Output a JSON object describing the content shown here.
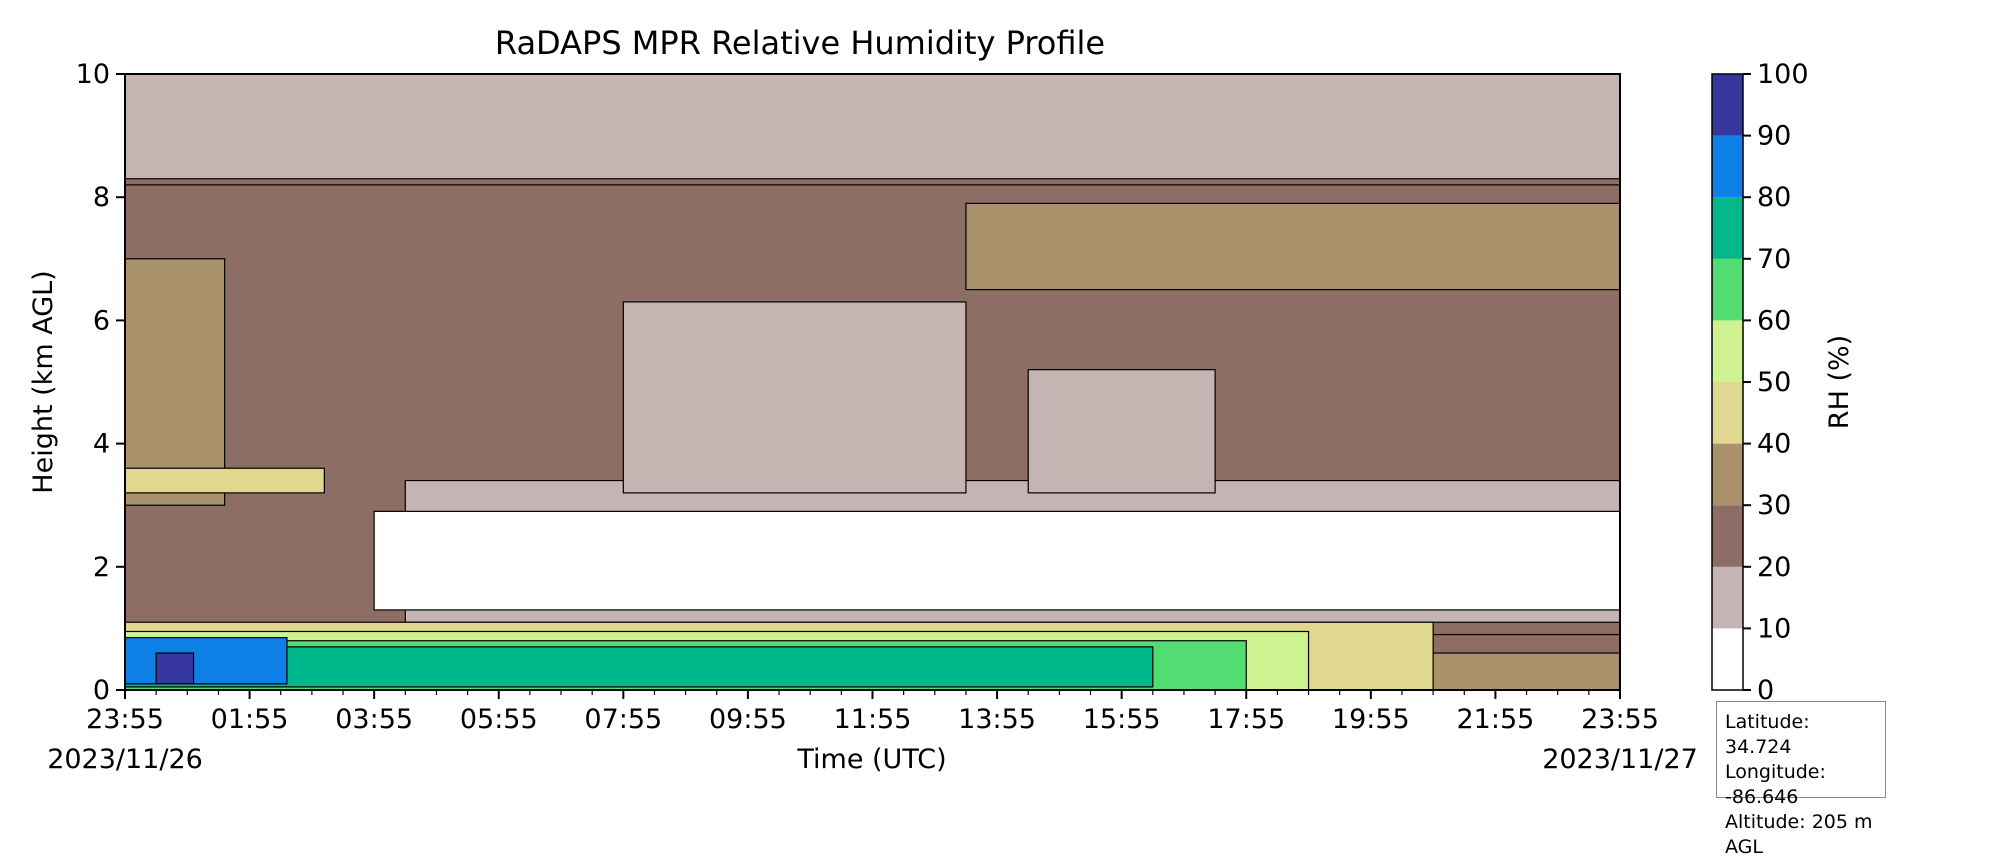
{
  "chart_data": {
    "type": "heatmap",
    "title": "RaDAPS MPR Relative Humidity Profile",
    "xlabel": "Time (UTC)",
    "ylabel": "Height (km AGL)",
    "x_tick_labels": [
      "23:55",
      "01:55",
      "03:55",
      "05:55",
      "07:55",
      "09:55",
      "11:55",
      "13:55",
      "15:55",
      "17:55",
      "19:55",
      "21:55",
      "23:55"
    ],
    "x_tick_hours": [
      0,
      2,
      4,
      6,
      8,
      10,
      12,
      14,
      16,
      18,
      20,
      22,
      24
    ],
    "x_start_date": "2023/11/26",
    "x_end_date": "2023/11/27",
    "y_ticks": [
      0,
      2,
      4,
      6,
      8,
      10
    ],
    "ylim": [
      0,
      10
    ],
    "colorbar": {
      "label": "RH (%)",
      "ticks": [
        0,
        10,
        20,
        30,
        40,
        50,
        60,
        70,
        80,
        90,
        100
      ],
      "bins": [
        {
          "min": 0,
          "max": 10,
          "color": "#ffffff"
        },
        {
          "min": 10,
          "max": 20,
          "color": "#c5b5b2"
        },
        {
          "min": 20,
          "max": 30,
          "color": "#8d6e65"
        },
        {
          "min": 30,
          "max": 40,
          "color": "#a8916b"
        },
        {
          "min": 40,
          "max": 50,
          "color": "#e0d88e"
        },
        {
          "min": 50,
          "max": 60,
          "color": "#cdf28f"
        },
        {
          "min": 60,
          "max": 70,
          "color": "#52dc72"
        },
        {
          "min": 70,
          "max": 80,
          "color": "#00b88c"
        },
        {
          "min": 80,
          "max": 90,
          "color": "#0f80e6"
        },
        {
          "min": 90,
          "max": 100,
          "color": "#36369f"
        }
      ]
    },
    "layers": [
      {
        "rh_bin": "20-30",
        "t_start": 0,
        "t_end": 24,
        "z_bottom": 0.9,
        "z_top": 8.2
      },
      {
        "rh_bin": "10-20",
        "t_start": 0,
        "t_end": 24,
        "z_bottom": 8.3,
        "z_top": 10.0
      },
      {
        "rh_bin": "10-20",
        "t_start": 4.5,
        "t_end": 24,
        "z_bottom": 1.1,
        "z_top": 3.4
      },
      {
        "rh_bin": "10-20",
        "t_start": 8,
        "t_end": 13.5,
        "z_bottom": 3.2,
        "z_top": 6.3
      },
      {
        "rh_bin": "10-20",
        "t_start": 14.5,
        "t_end": 17.5,
        "z_bottom": 3.2,
        "z_top": 5.2
      },
      {
        "rh_bin": "0-10",
        "t_start": 4.0,
        "t_end": 24,
        "z_bottom": 1.3,
        "z_top": 2.9
      },
      {
        "rh_bin": "30-40",
        "t_start": 13.5,
        "t_end": 24,
        "z_bottom": 6.5,
        "z_top": 7.9
      },
      {
        "rh_bin": "30-40",
        "t_start": 0,
        "t_end": 1.6,
        "z_bottom": 3.0,
        "z_top": 7.0
      },
      {
        "rh_bin": "40-50",
        "t_start": 0,
        "t_end": 3.2,
        "z_bottom": 3.2,
        "z_top": 3.6
      },
      {
        "rh_bin": "30-40",
        "t_start": 19.5,
        "t_end": 24,
        "z_bottom": 0,
        "z_top": 0.6
      },
      {
        "rh_bin": "40-50",
        "t_start": 0,
        "t_end": 21,
        "z_bottom": 0,
        "z_top": 1.1
      },
      {
        "rh_bin": "50-60",
        "t_start": 0,
        "t_end": 19,
        "z_bottom": 0,
        "z_top": 0.95
      },
      {
        "rh_bin": "60-70",
        "t_start": 0,
        "t_end": 18,
        "z_bottom": 0,
        "z_top": 0.8
      },
      {
        "rh_bin": "70-80",
        "t_start": 0,
        "t_end": 16.5,
        "z_bottom": 0.05,
        "z_top": 0.7
      },
      {
        "rh_bin": "80-90",
        "t_start": 0,
        "t_end": 2.6,
        "z_bottom": 0.1,
        "z_top": 0.85
      },
      {
        "rh_bin": "90-100",
        "t_start": 0.5,
        "t_end": 1.1,
        "z_bottom": 0.1,
        "z_top": 0.6
      }
    ]
  },
  "station_info": {
    "latitude": "Latitude: 34.724",
    "longitude": "Longitude: -86.646",
    "altitude": "Altitude: 205 m AGL"
  }
}
